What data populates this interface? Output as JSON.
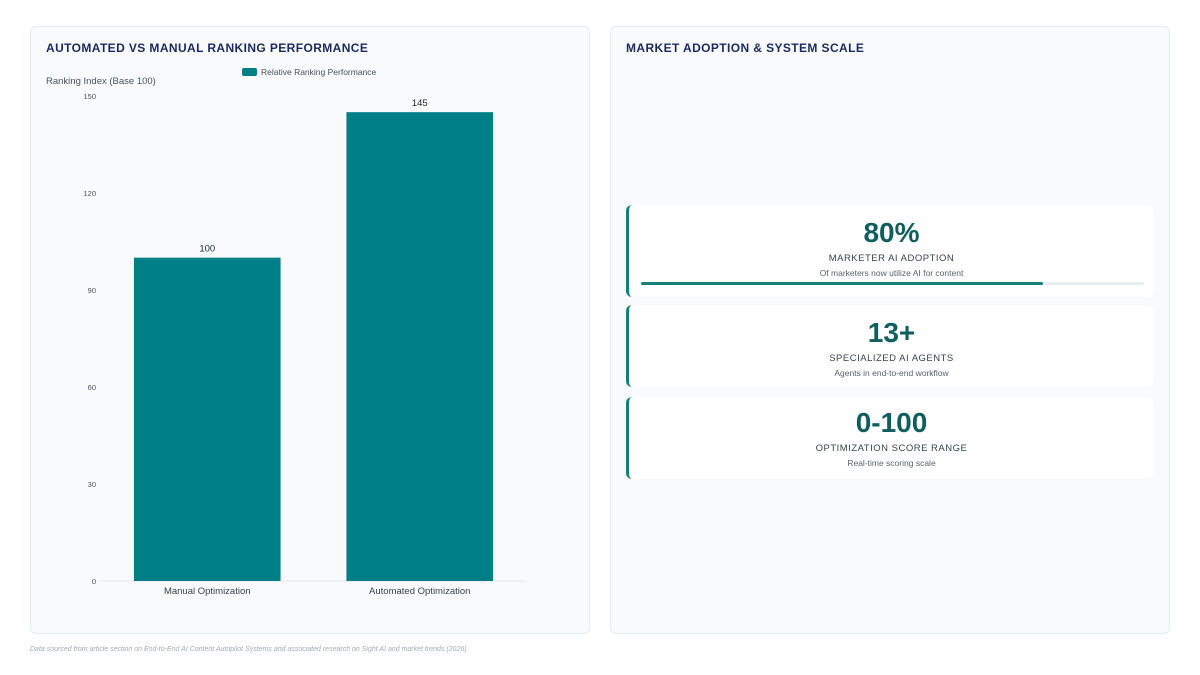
{
  "left_panel": {
    "title": "AUTOMATED VS MANUAL RANKING PERFORMANCE"
  },
  "chart_data": {
    "type": "bar",
    "categories": [
      "Manual Optimization",
      "Automated Optimization"
    ],
    "series": [
      {
        "name": "Relative Ranking Performance",
        "values": [
          100,
          145
        ]
      }
    ],
    "ylabel": "Ranking Index (Base 100)",
    "xlabel": "",
    "ylim": [
      0,
      150
    ],
    "yticks": [
      0,
      30,
      60,
      90,
      120,
      150
    ],
    "data_labels": [
      "100",
      "145"
    ],
    "legend_position": "top",
    "grid": false,
    "bar_color": "#007f86"
  },
  "right_panel": {
    "title": "MARKET ADOPTION & SYSTEM SCALE",
    "stats": [
      {
        "value": "80%",
        "label": "MARKETER AI ADOPTION",
        "description": "Of marketers now utilize AI for content",
        "progress": 0.8
      },
      {
        "value": "13+",
        "label": "SPECIALIZED AI AGENTS",
        "description": "Agents in end-to-end workflow"
      },
      {
        "value": "0-100",
        "label": "OPTIMIZATION SCORE RANGE",
        "description": "Real-time scoring scale"
      }
    ]
  },
  "footer": {
    "note": "Data sourced from article section on End-to-End AI Content Autopilot Systems and associated research on Sight AI and market trends (2026)."
  },
  "colors": {
    "accent": "#157f7a",
    "title": "#1b2a5c",
    "bar": "#007f86"
  }
}
